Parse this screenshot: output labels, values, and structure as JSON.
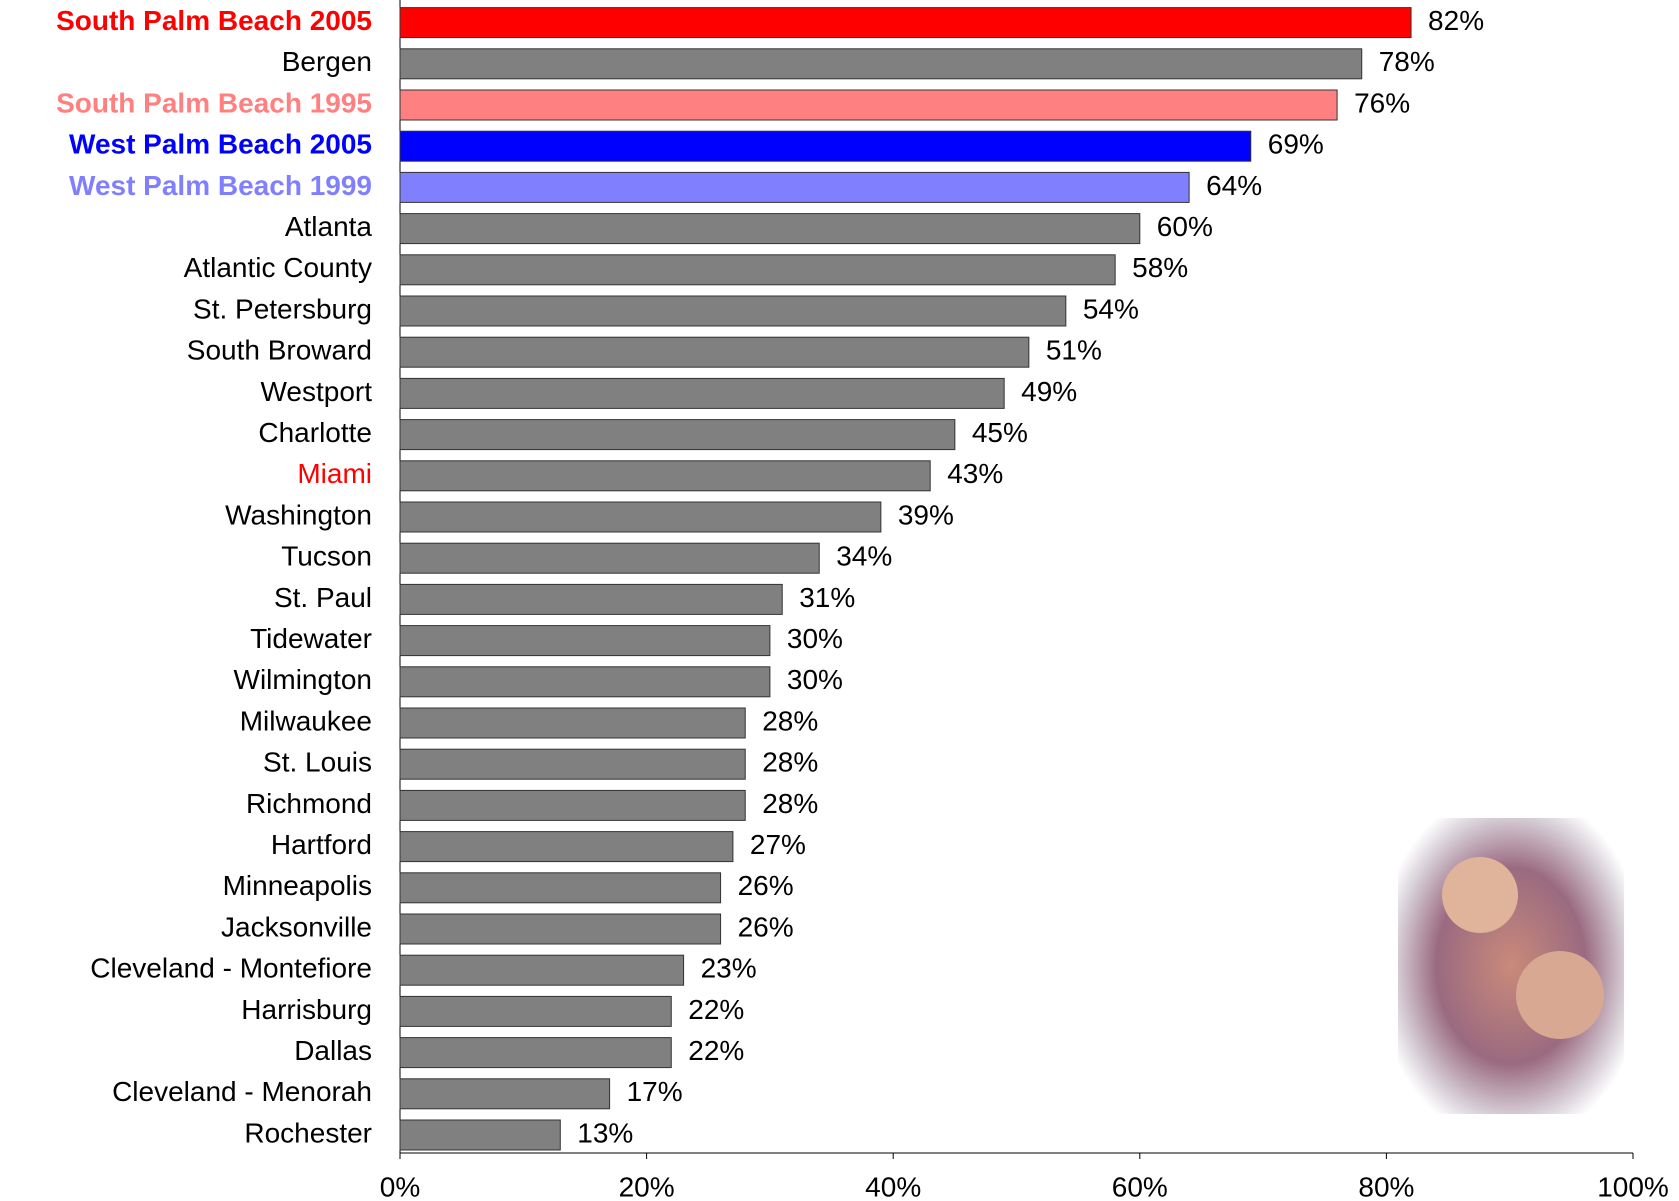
{
  "chart_data": {
    "type": "bar",
    "orientation": "horizontal",
    "categories": [
      "South Palm Beach 2005",
      "Bergen",
      "South Palm Beach 1995",
      "West Palm Beach 2005",
      "West Palm Beach 1999",
      "Atlanta",
      "Atlantic County",
      "St. Petersburg",
      "South Broward",
      "Westport",
      "Charlotte",
      "Miami",
      "Washington",
      "Tucson",
      "St. Paul",
      "Tidewater",
      "Wilmington",
      "Milwaukee",
      "St. Louis",
      "Richmond",
      "Hartford",
      "Minneapolis",
      "Jacksonville",
      "Cleveland - Montefiore",
      "Harrisburg",
      "Dallas",
      "Cleveland - Menorah",
      "Rochester"
    ],
    "values": [
      82,
      78,
      76,
      69,
      64,
      60,
      58,
      54,
      51,
      49,
      45,
      43,
      39,
      34,
      31,
      30,
      30,
      28,
      28,
      28,
      27,
      26,
      26,
      23,
      22,
      22,
      17,
      13
    ],
    "value_labels": [
      "82%",
      "78%",
      "76%",
      "69%",
      "64%",
      "60%",
      "58%",
      "54%",
      "51%",
      "49%",
      "45%",
      "43%",
      "39%",
      "34%",
      "31%",
      "30%",
      "30%",
      "28%",
      "28%",
      "28%",
      "27%",
      "26%",
      "26%",
      "23%",
      "22%",
      "22%",
      "17%",
      "13%"
    ],
    "colors": [
      "#ff0000",
      "#808080",
      "#ff8080",
      "#0000ff",
      "#8080ff",
      "#808080",
      "#808080",
      "#808080",
      "#808080",
      "#808080",
      "#808080",
      "#808080",
      "#808080",
      "#808080",
      "#808080",
      "#808080",
      "#808080",
      "#808080",
      "#808080",
      "#808080",
      "#808080",
      "#808080",
      "#808080",
      "#808080",
      "#808080",
      "#808080",
      "#808080",
      "#808080"
    ],
    "label_colors": [
      "#ff0000",
      "#000000",
      "#ff8080",
      "#0000ff",
      "#8080ff",
      "#000000",
      "#000000",
      "#000000",
      "#000000",
      "#000000",
      "#000000",
      "#ff0000",
      "#000000",
      "#000000",
      "#000000",
      "#000000",
      "#000000",
      "#000000",
      "#000000",
      "#000000",
      "#000000",
      "#000000",
      "#000000",
      "#000000",
      "#000000",
      "#000000",
      "#000000",
      "#000000"
    ],
    "label_bold": [
      true,
      false,
      true,
      true,
      true,
      false,
      false,
      false,
      false,
      false,
      false,
      false,
      false,
      false,
      false,
      false,
      false,
      false,
      false,
      false,
      false,
      false,
      false,
      false,
      false,
      false,
      false,
      false
    ],
    "xlim": [
      0,
      100
    ],
    "xticks": [
      {
        "value": 0,
        "label": "0%"
      },
      {
        "value": 20,
        "label": "20%"
      },
      {
        "value": 40,
        "label": "40%"
      },
      {
        "value": 60,
        "label": "60%"
      },
      {
        "value": 80,
        "label": "80%"
      },
      {
        "value": 100,
        "label": "100%"
      }
    ],
    "grid": false
  }
}
